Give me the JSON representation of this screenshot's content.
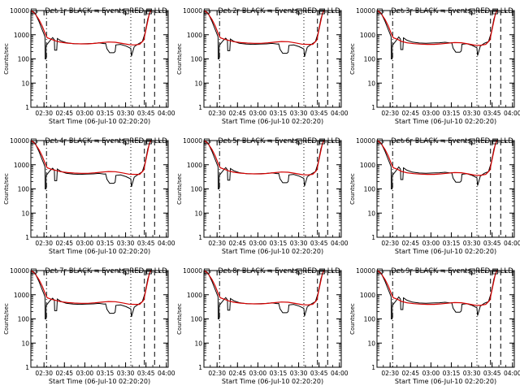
{
  "chart_data": [
    {
      "type": "line",
      "title": "Det 1r BLACK = Events, RED = LLD",
      "variant": 0
    },
    {
      "type": "line",
      "title": "Det 2r BLACK = Events, RED = LLD",
      "variant": 1
    },
    {
      "type": "line",
      "title": "Det 3r BLACK = Events, RED = LLD",
      "variant": 2
    },
    {
      "type": "line",
      "title": "Det 4r BLACK = Events, RED = LLD",
      "variant": 1
    },
    {
      "type": "line",
      "title": "Det 5r BLACK = Events, RED = LLD",
      "variant": 0
    },
    {
      "type": "line",
      "title": "Det 6r BLACK = Events, RED = LLD",
      "variant": 2
    },
    {
      "type": "line",
      "title": "Det 7r BLACK = Events, RED = LLD",
      "variant": 1
    },
    {
      "type": "line",
      "title": "Det 8r BLACK = Events, RED = LLD",
      "variant": 0
    },
    {
      "type": "line",
      "title": "Det 9r BLACK = Events, RED = LLD",
      "variant": 2
    }
  ],
  "shared": {
    "xlabel": "Start Time (06-Jul-10 02:20:20)",
    "ylabel": "Counts/sec",
    "y_scale": "log",
    "ylim": [
      1,
      10000
    ],
    "x_ticks": [
      "02:30",
      "02:45",
      "03:00",
      "03:15",
      "03:30",
      "03:45",
      "04:00"
    ],
    "x_tick_minutes": [
      9.67,
      24.67,
      39.67,
      54.67,
      69.67,
      84.67,
      99.67
    ],
    "xlim_minutes": [
      0,
      101
    ],
    "y_ticks": [
      {
        "v": 1,
        "label": "1"
      },
      {
        "v": 10,
        "label": "10"
      },
      {
        "v": 100,
        "label": "100"
      },
      {
        "v": 1000,
        "label": "1000"
      },
      {
        "v": 10000,
        "label": "10000"
      }
    ],
    "event_color": "#000000",
    "lld_color": "#d40000",
    "vlines": [
      {
        "x": 11.5,
        "style": "dashdot"
      },
      {
        "x": 73.5,
        "style": "dot"
      },
      {
        "x": 83.5,
        "style": "dash"
      },
      {
        "x": 91,
        "style": "dash"
      }
    ],
    "series": [
      {
        "color_key": "event_color",
        "points": [
          [
            0,
            10500
          ],
          [
            3,
            8000
          ],
          [
            6,
            3500
          ],
          [
            8,
            1800
          ],
          [
            9.5,
            1100
          ],
          [
            10.4,
            800
          ],
          [
            10.5,
            100
          ],
          [
            11.2,
            100
          ],
          [
            11.3,
            360
          ],
          [
            14,
            560
          ],
          [
            16,
            760
          ],
          [
            17.3,
            620
          ],
          [
            17.5,
            230
          ],
          [
            19,
            230
          ],
          [
            19.5,
            700
          ],
          [
            22,
            560
          ],
          [
            26,
            470
          ],
          [
            31,
            430
          ],
          [
            36,
            420
          ],
          [
            41,
            430
          ],
          [
            46,
            440
          ],
          [
            50,
            460
          ],
          [
            54,
            430
          ],
          [
            55,
            440
          ],
          [
            56,
            260
          ],
          [
            58,
            180
          ],
          [
            61,
            180
          ],
          [
            62,
            200
          ],
          [
            62.5,
            380
          ],
          [
            66,
            400
          ],
          [
            70,
            340
          ],
          [
            72,
            300
          ],
          [
            73.5,
            270
          ],
          [
            74,
            130
          ],
          [
            76,
            320
          ],
          [
            79,
            420
          ],
          [
            82,
            520
          ],
          [
            84,
            1200
          ],
          [
            86,
            4500
          ],
          [
            88,
            9500
          ],
          [
            89.5,
            10500
          ]
        ]
      },
      {
        "color_key": "lld_color",
        "points": [
          [
            0,
            10500
          ],
          [
            3,
            7500
          ],
          [
            6,
            4200
          ],
          [
            8.5,
            2200
          ],
          [
            10.5,
            1100
          ],
          [
            12,
            750
          ],
          [
            15,
            650
          ],
          [
            18,
            560
          ],
          [
            22,
            490
          ],
          [
            27,
            450
          ],
          [
            32,
            430
          ],
          [
            37,
            420
          ],
          [
            42,
            420
          ],
          [
            47,
            440
          ],
          [
            52,
            470
          ],
          [
            57,
            500
          ],
          [
            62,
            490
          ],
          [
            67,
            440
          ],
          [
            72,
            390
          ],
          [
            76,
            380
          ],
          [
            80,
            400
          ],
          [
            83,
            600
          ],
          [
            85,
            2000
          ],
          [
            87,
            7000
          ],
          [
            88.5,
            10500
          ]
        ]
      }
    ]
  }
}
